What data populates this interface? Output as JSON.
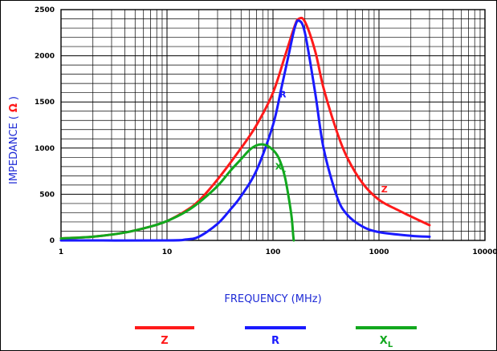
{
  "chart_data": {
    "type": "line",
    "xscale": "log",
    "xlim": [
      1,
      10000
    ],
    "ylim": [
      0,
      2500
    ],
    "grid": true,
    "xlabel": "FREQUENCY (MHz)",
    "ylabel": "IMPEDANCE",
    "ylabel_unit": "Ω",
    "x_ticks": [
      "1",
      "10",
      "100",
      "1000",
      "10000"
    ],
    "y_ticks": [
      "0",
      "500",
      "1000",
      "1500",
      "2000",
      "2500"
    ],
    "legend_position": "bottom",
    "series": [
      {
        "name": "Z",
        "color": "#ff1a1a",
        "points": [
          [
            1,
            22
          ],
          [
            2,
            40
          ],
          [
            4,
            85
          ],
          [
            7,
            150
          ],
          [
            10,
            210
          ],
          [
            15,
            320
          ],
          [
            20,
            430
          ],
          [
            30,
            660
          ],
          [
            50,
            1000
          ],
          [
            70,
            1250
          ],
          [
            100,
            1600
          ],
          [
            130,
            2000
          ],
          [
            160,
            2320
          ],
          [
            175,
            2400
          ],
          [
            200,
            2370
          ],
          [
            250,
            2050
          ],
          [
            300,
            1650
          ],
          [
            400,
            1180
          ],
          [
            500,
            900
          ],
          [
            700,
            620
          ],
          [
            1000,
            440
          ],
          [
            1500,
            330
          ],
          [
            2000,
            260
          ],
          [
            3000,
            165
          ]
        ]
      },
      {
        "name": "R",
        "color": "#1a1aff",
        "points": [
          [
            1,
            0
          ],
          [
            10,
            0
          ],
          [
            15,
            10
          ],
          [
            20,
            40
          ],
          [
            30,
            180
          ],
          [
            40,
            340
          ],
          [
            50,
            480
          ],
          [
            70,
            760
          ],
          [
            100,
            1250
          ],
          [
            120,
            1650
          ],
          [
            140,
            2000
          ],
          [
            160,
            2300
          ],
          [
            175,
            2380
          ],
          [
            200,
            2250
          ],
          [
            250,
            1600
          ],
          [
            300,
            1000
          ],
          [
            400,
            480
          ],
          [
            500,
            280
          ],
          [
            700,
            150
          ],
          [
            1000,
            90
          ],
          [
            2000,
            50
          ],
          [
            3000,
            40
          ]
        ]
      },
      {
        "name": "X",
        "name_subscript": "L",
        "color": "#12a81e",
        "points": [
          [
            1,
            22
          ],
          [
            2,
            40
          ],
          [
            4,
            85
          ],
          [
            7,
            150
          ],
          [
            10,
            210
          ],
          [
            15,
            310
          ],
          [
            20,
            410
          ],
          [
            30,
            590
          ],
          [
            40,
            760
          ],
          [
            50,
            880
          ],
          [
            60,
            980
          ],
          [
            70,
            1030
          ],
          [
            80,
            1040
          ],
          [
            90,
            1020
          ],
          [
            100,
            980
          ],
          [
            110,
            920
          ],
          [
            120,
            820
          ],
          [
            130,
            680
          ],
          [
            140,
            480
          ],
          [
            150,
            250
          ],
          [
            155,
            60
          ],
          [
            157,
            0
          ]
        ]
      }
    ],
    "annotations": [
      {
        "text": "R",
        "series": "R"
      },
      {
        "text": "X",
        "subscript": "L",
        "series": "X"
      },
      {
        "text": "Z",
        "series": "Z"
      }
    ]
  },
  "legend": {
    "items": [
      {
        "label": "Z",
        "color": "#ff1a1a"
      },
      {
        "label": "R",
        "color": "#1a1aff"
      },
      {
        "label": "X",
        "subscript": "L",
        "color": "#12a81e"
      }
    ]
  }
}
